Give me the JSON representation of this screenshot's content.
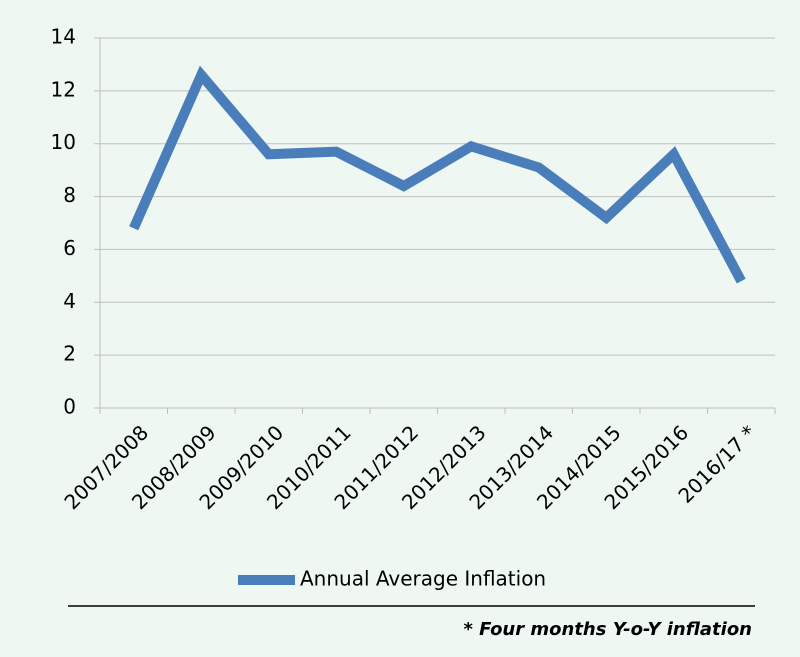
{
  "chart_data": {
    "type": "line",
    "categories": [
      "2007/2008",
      "2008/2009",
      "2009/2010",
      "2010/2011",
      "2011/2012",
      "2012/2013",
      "2013/2014",
      "2014/2015",
      "2015/2016",
      "2016/17 *"
    ],
    "series": [
      {
        "name": "Annual Average Inflation",
        "color": "#4a7ebb",
        "values": [
          6.8,
          12.6,
          9.6,
          9.7,
          8.4,
          9.9,
          9.1,
          7.2,
          9.6,
          4.8
        ]
      }
    ],
    "ylim": [
      0,
      14
    ],
    "yticks": [
      0,
      2,
      4,
      6,
      8,
      10,
      12,
      14
    ],
    "grid": true,
    "footnote": "* Four months Y-o-Y inflation"
  }
}
